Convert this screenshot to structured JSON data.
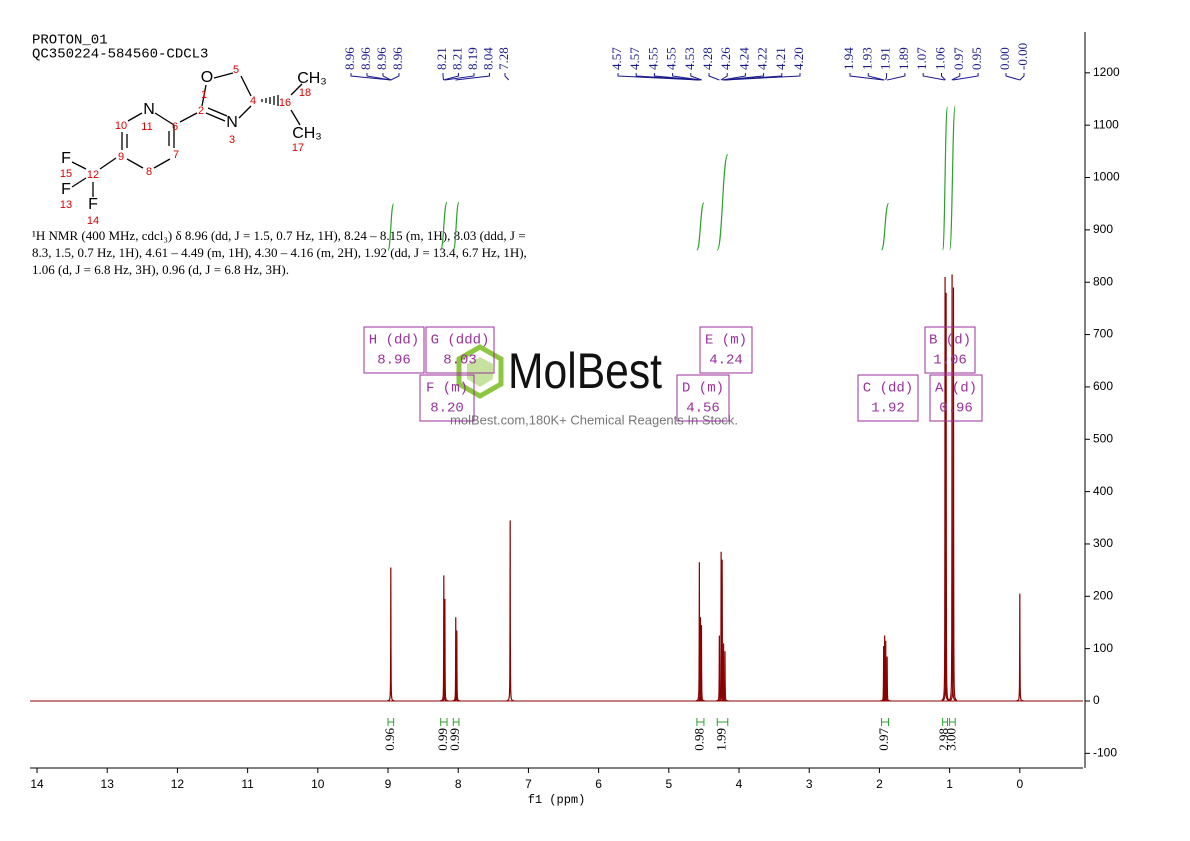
{
  "header": {
    "experiment": "PROTON_01",
    "sample": "QC350224-584560-CDCL3"
  },
  "molecule": {
    "atoms": [
      "O",
      "5",
      "CH₃",
      "1",
      "18",
      "2",
      "4",
      "16",
      "N",
      "10",
      "11",
      "6",
      "N",
      "3",
      "CH₃",
      "17",
      "7",
      "9",
      "F",
      "15",
      "12",
      "F",
      "8",
      "13",
      "F",
      "14"
    ]
  },
  "description": [
    "¹H NMR (400 MHz, cdcl₃) δ 8.96 (dd, J = 1.5, 0.7 Hz, 1H), 8.24 – 8.15 (m, 1H), 8.03 (ddd, J =",
    "8.3, 1.5, 0.7 Hz, 1H), 4.61 – 4.49 (m, 1H), 4.30 – 4.16 (m, 2H), 1.92 (dd, J = 13.4, 6.7 Hz, 1H),",
    "1.06 (d, J = 6.8 Hz, 3H), 0.96 (d, J = 6.8 Hz, 3H)."
  ],
  "watermark": {
    "brand": "MolBest",
    "tagline": "molBest.com,180K+ Chemical Reagents In Stock."
  },
  "chart_data": {
    "type": "nmr",
    "x_label": "f1 (ppm)",
    "xlim": [
      14.1,
      -0.9
    ],
    "xticks": [
      14,
      13,
      12,
      11,
      10,
      9,
      8,
      7,
      6,
      5,
      4,
      3,
      2,
      1,
      0
    ],
    "ylim": [
      -128,
      1278
    ],
    "yticks": [
      -100,
      0,
      100,
      200,
      300,
      400,
      500,
      600,
      700,
      800,
      900,
      1000,
      1100,
      1200
    ],
    "color": "#8b0000",
    "x": [
      8.96,
      8.205,
      8.19,
      8.035,
      8.02,
      7.26,
      4.565,
      4.55,
      4.535,
      4.28,
      4.255,
      4.24,
      4.22,
      4.2,
      1.94,
      1.925,
      1.91,
      1.89,
      1.065,
      1.05,
      0.965,
      0.945,
      0.0
    ],
    "values": [
      255,
      240,
      195,
      160,
      135,
      345,
      265,
      160,
      145,
      125,
      285,
      270,
      110,
      95,
      105,
      125,
      115,
      85,
      810,
      780,
      815,
      790,
      205
    ],
    "peak_labels": [
      [
        "8.96",
        "8.96",
        "8.96",
        "8.96"
      ],
      [
        "8.21",
        "8.21",
        "8.19",
        "8.04",
        "7.28"
      ],
      [
        "4.57",
        "4.57",
        "4.55",
        "4.55",
        "4.53",
        "4.28",
        "4.26",
        "4.24",
        "4.22",
        "4.21",
        "4.20"
      ],
      [
        "1.94",
        "1.93",
        "1.91",
        "1.89",
        "1.07",
        "1.06",
        "0.97",
        "0.95"
      ],
      [
        "0.00",
        "-0.00"
      ]
    ],
    "multiplets": [
      {
        "name": "H (dd)",
        "shift": "8.96"
      },
      {
        "name": "G (ddd)",
        "shift": "8.03"
      },
      {
        "name": "F (m)",
        "shift": "8.20"
      },
      {
        "name": "E (m)",
        "shift": "4.24"
      },
      {
        "name": "D (m)",
        "shift": "4.56"
      },
      {
        "name": "C (dd)",
        "shift": "1.92"
      },
      {
        "name": "B (d)",
        "shift": "1.06"
      },
      {
        "name": "A (d)",
        "shift": "0.96"
      }
    ],
    "integrals": {
      "color": "#2ca02c",
      "ranges": [
        [
          9.0,
          8.92
        ],
        [
          8.25,
          8.16
        ],
        [
          8.07,
          7.99
        ],
        [
          4.6,
          4.5
        ],
        [
          4.31,
          4.16
        ],
        [
          1.97,
          1.87
        ],
        [
          1.1,
          1.03
        ],
        [
          1.0,
          0.92
        ]
      ],
      "values": [
        0.96,
        0.99,
        0.99,
        0.98,
        1.99,
        0.97,
        2.98,
        3
      ],
      "value_labels": [
        "0.96",
        "0.99",
        "0.99",
        "0.98",
        "1.99",
        "0.97",
        "2.98",
        "3.00"
      ]
    }
  }
}
